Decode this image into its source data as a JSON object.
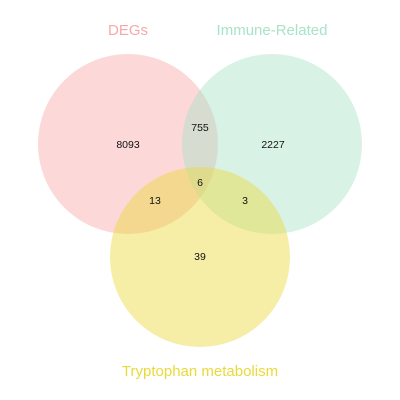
{
  "sets": [
    {
      "key": "degs",
      "label": "DEGs",
      "color": "#F8A8A8"
    },
    {
      "key": "immune",
      "label": "Immune-Related",
      "color": "#A8E3C8"
    },
    {
      "key": "trp",
      "label": "Tryptophan metabolism",
      "color": "#EBD93A"
    }
  ],
  "regions": {
    "degs_only": "8093",
    "immune_only": "2227",
    "trp_only": "39",
    "degs_immune": "755",
    "degs_trp": "13",
    "immune_trp": "3",
    "all_three": "6"
  }
}
